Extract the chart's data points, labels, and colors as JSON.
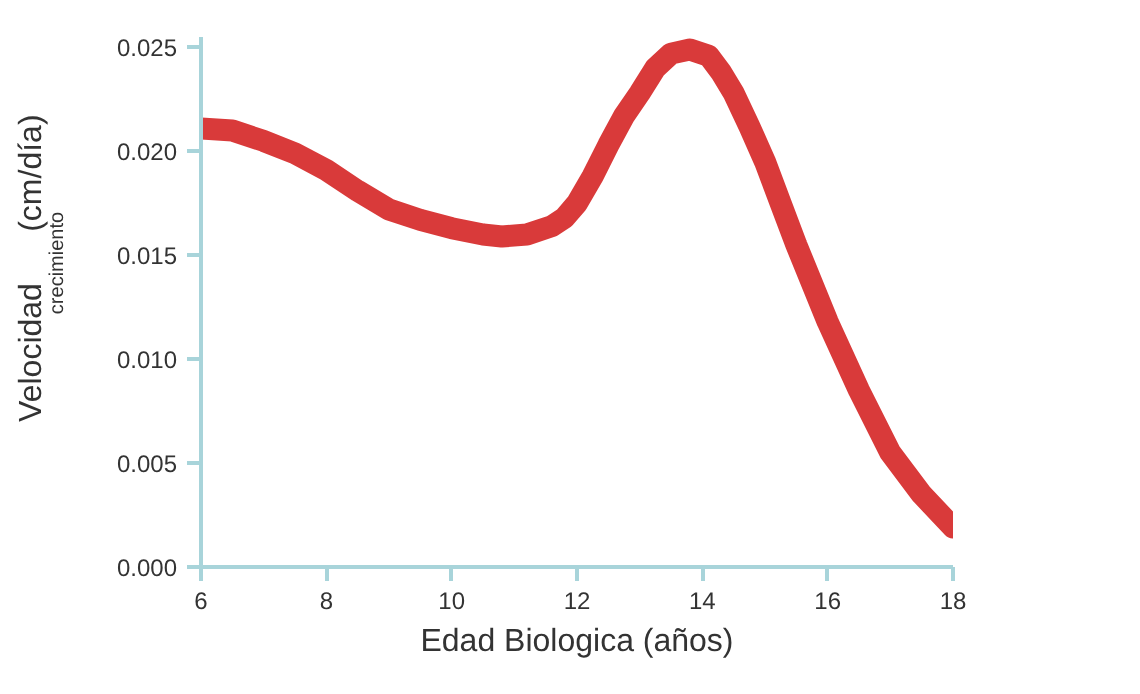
{
  "chart_data": {
    "type": "line",
    "xlabel": "Edad Biologica (años)",
    "ylabel": "Velocidad$_{crecimiento}$ (cm/día)",
    "x": [
      6,
      6.5,
      7,
      7.5,
      8,
      8.5,
      9,
      9.5,
      10,
      10.5,
      10.8,
      11.2,
      11.6,
      11.8,
      12,
      12.25,
      12.5,
      12.75,
      13,
      13.25,
      13.5,
      13.8,
      14.1,
      14.3,
      14.5,
      14.75,
      15,
      15.25,
      15.5,
      16,
      16.5,
      17,
      17.5,
      18
    ],
    "series": [
      {
        "color": "#d93a3a",
        "values": [
          0.0211,
          0.021,
          0.0205,
          0.0199,
          0.0191,
          0.0181,
          0.0172,
          0.0167,
          0.0163,
          0.016,
          0.0159,
          0.016,
          0.0164,
          0.0168,
          0.0175,
          0.0188,
          0.0203,
          0.0217,
          0.0228,
          0.024,
          0.0247,
          0.0249,
          0.0246,
          0.0238,
          0.0228,
          0.0212,
          0.0195,
          0.0175,
          0.0155,
          0.0118,
          0.0085,
          0.0055,
          0.0035,
          0.0019
        ]
      }
    ],
    "xlim": [
      6,
      18
    ],
    "ylim": [
      0,
      0.0255
    ],
    "xticks": [
      6,
      8,
      10,
      12,
      14,
      16,
      18
    ],
    "yticks": [
      {
        "value": 0,
        "label": "0.000"
      },
      {
        "value": 0.005,
        "label": "0.005"
      },
      {
        "value": 0.01,
        "label": "0.010"
      },
      {
        "value": 0.015,
        "label": "0.015"
      },
      {
        "value": 0.02,
        "label": "0.020"
      },
      {
        "value": 0.025,
        "label": "0.025"
      }
    ],
    "grid": false,
    "line_style": "solid"
  }
}
